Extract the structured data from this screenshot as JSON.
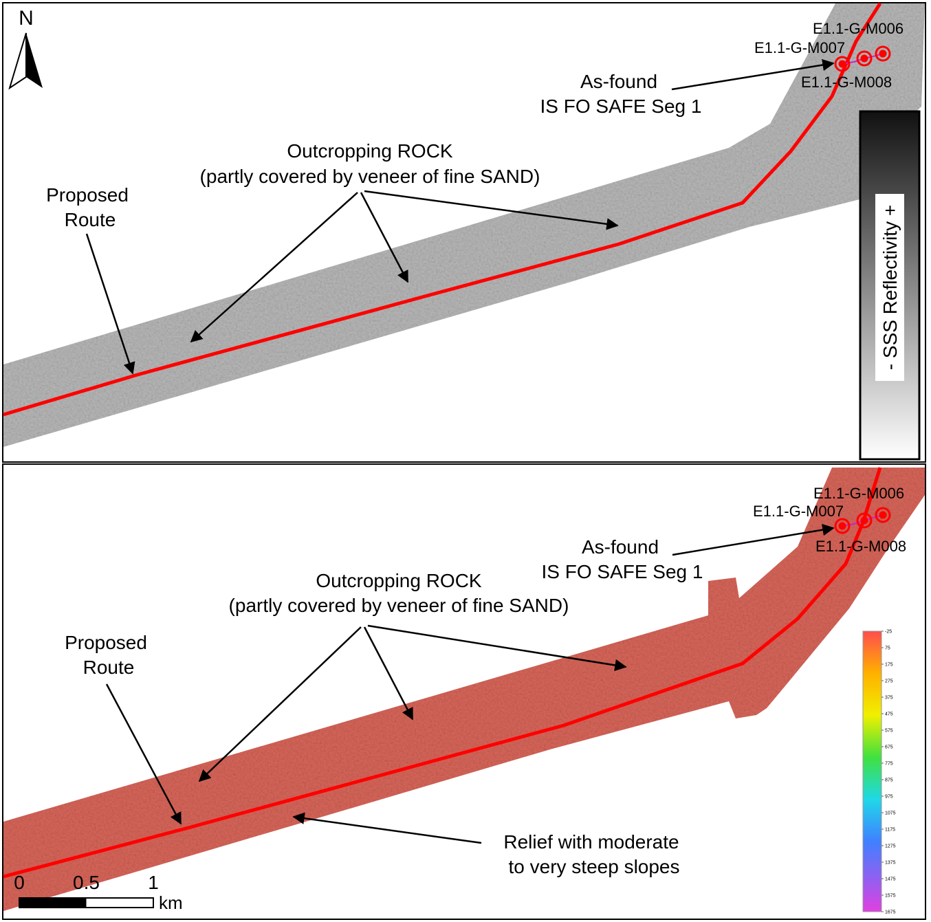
{
  "top_panel": {
    "north_label": "N",
    "targets": [
      "E1.1-G-M006",
      "E1.1-G-M007",
      "E1.1-G-M008"
    ],
    "as_found": [
      "As-found",
      "IS FO SAFE Seg 1"
    ],
    "rock": [
      "Outcropping ROCK",
      "(partly covered by veneer of fine SAND)"
    ],
    "route": [
      "Proposed",
      "Route"
    ],
    "legend_title": "- SSS Reflectivity +"
  },
  "bottom_panel": {
    "targets": [
      "E1.1-G-M006",
      "E1.1-G-M007",
      "E1.1-G-M008"
    ],
    "as_found": [
      "As-found",
      "IS FO SAFE Seg 1"
    ],
    "rock": [
      "Outcropping ROCK",
      "(partly covered by veneer of fine SAND)"
    ],
    "route": [
      "Proposed",
      "Route"
    ],
    "relief": [
      "Relief with moderate",
      "to very steep slopes"
    ],
    "colorbar": {
      "ticks": [
        -25,
        75,
        175,
        275,
        375,
        475,
        575,
        675,
        775,
        875,
        975,
        1075,
        1175,
        1275,
        1375,
        1475,
        1575,
        1675
      ]
    },
    "scale_bar": {
      "ticks": [
        0,
        0.5,
        1
      ],
      "unit": "km"
    }
  }
}
